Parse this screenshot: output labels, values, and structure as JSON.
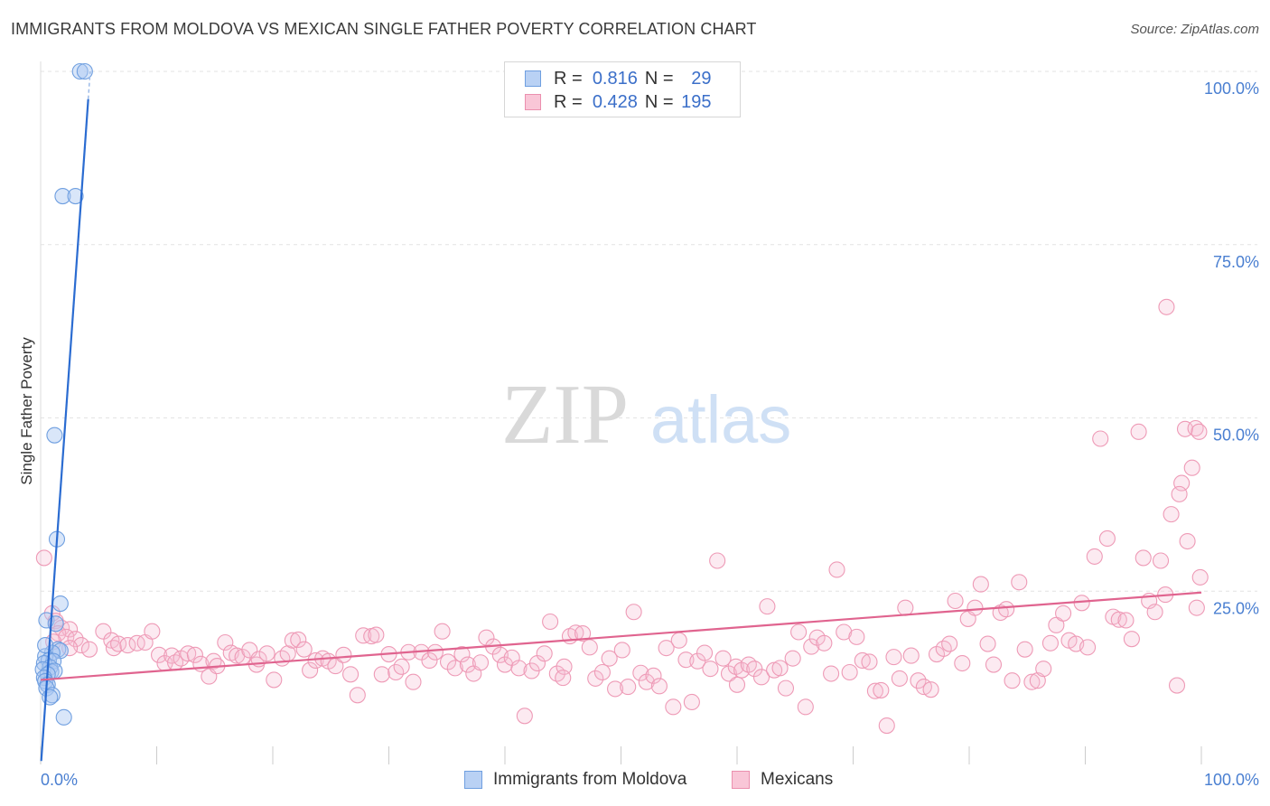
{
  "title": "IMMIGRANTS FROM MOLDOVA VS MEXICAN SINGLE FATHER POVERTY CORRELATION CHART",
  "source": "Source: ZipAtlas.com",
  "watermark": {
    "zip": "ZIP",
    "atlas": "atlas"
  },
  "legend": {
    "series": [
      {
        "name": "Immigrants from Moldova",
        "r_label": "R =",
        "r": "0.816",
        "n_label": "N =",
        "n": "29",
        "color": "#6f9fe0"
      },
      {
        "name": "Mexicans",
        "r_label": "R =",
        "r": "0.428",
        "n_label": "N =",
        "n": "195",
        "color": "#eb8fae"
      }
    ]
  },
  "chart_data": {
    "type": "scatter",
    "title": "IMMIGRANTS FROM MOLDOVA VS MEXICAN SINGLE FATHER POVERTY CORRELATION CHART",
    "xlabel": "",
    "ylabel": "Single Father Poverty",
    "xlim": [
      0,
      100
    ],
    "ylim": [
      0,
      100
    ],
    "x_tick_labels": [
      "0.0%",
      "100.0%"
    ],
    "y_ticks": [
      25,
      50,
      75,
      100
    ],
    "y_tick_labels": [
      "25.0%",
      "50.0%",
      "75.0%",
      "100.0%"
    ],
    "grid": true,
    "series": [
      {
        "name": "Immigrants from Moldova",
        "color": "#6f9fe0",
        "line_color": "#2b6cd1",
        "trend": {
          "x": [
            0.05,
            4.1
          ],
          "y": [
            0.5,
            96.0
          ]
        },
        "points": [
          [
            3.4,
            100
          ],
          [
            3.8,
            100
          ],
          [
            1.9,
            82
          ],
          [
            3.0,
            82
          ],
          [
            1.2,
            47.5
          ],
          [
            1.4,
            32.5
          ],
          [
            1.7,
            23.2
          ],
          [
            0.5,
            20.8
          ],
          [
            1.3,
            20.3
          ],
          [
            1.5,
            16.6
          ],
          [
            1.7,
            16.4
          ],
          [
            1.0,
            16.1
          ],
          [
            0.4,
            15.6
          ],
          [
            0.7,
            15.0
          ],
          [
            1.1,
            14.9
          ],
          [
            0.3,
            14.6
          ],
          [
            0.8,
            14.0
          ],
          [
            0.2,
            13.7
          ],
          [
            0.9,
            13.4
          ],
          [
            1.2,
            13.5
          ],
          [
            0.6,
            13.0
          ],
          [
            0.3,
            12.5
          ],
          [
            0.4,
            12.0
          ],
          [
            0.6,
            11.5
          ],
          [
            0.5,
            11.0
          ],
          [
            1.0,
            10.0
          ],
          [
            0.8,
            9.7
          ],
          [
            2.0,
            6.8
          ],
          [
            0.4,
            17.2
          ]
        ]
      },
      {
        "name": "Mexicans",
        "color": "#eb8fae",
        "line_color": "#e0648f",
        "trend": {
          "x": [
            0,
            100
          ],
          "y": [
            12.2,
            24.8
          ]
        },
        "points": [
          [
            0.3,
            29.8
          ],
          [
            1.0,
            21.8
          ],
          [
            1.3,
            20.7
          ],
          [
            1.8,
            19.7
          ],
          [
            2.5,
            19.5
          ],
          [
            1.5,
            18.9
          ],
          [
            2.2,
            18.4
          ],
          [
            3.0,
            18.1
          ],
          [
            1.1,
            17.7
          ],
          [
            3.5,
            17.2
          ],
          [
            2.5,
            16.8
          ],
          [
            4.2,
            16.6
          ],
          [
            5.4,
            19.2
          ],
          [
            6.1,
            17.9
          ],
          [
            6.3,
            16.8
          ],
          [
            6.7,
            17.4
          ],
          [
            7.5,
            17.2
          ],
          [
            8.3,
            17.5
          ],
          [
            9.0,
            17.6
          ],
          [
            9.6,
            19.2
          ],
          [
            10.2,
            15.8
          ],
          [
            10.7,
            14.6
          ],
          [
            11.3,
            15.7
          ],
          [
            11.6,
            14.7
          ],
          [
            12.1,
            15.3
          ],
          [
            12.7,
            16.0
          ],
          [
            13.3,
            15.8
          ],
          [
            13.8,
            14.5
          ],
          [
            14.5,
            12.7
          ],
          [
            14.9,
            14.9
          ],
          [
            15.2,
            14.2
          ],
          [
            15.9,
            17.6
          ],
          [
            16.4,
            16.1
          ],
          [
            16.9,
            15.7
          ],
          [
            17.4,
            15.5
          ],
          [
            18.0,
            16.5
          ],
          [
            18.6,
            14.4
          ],
          [
            18.8,
            15.2
          ],
          [
            19.5,
            16.0
          ],
          [
            20.1,
            12.2
          ],
          [
            20.8,
            15.3
          ],
          [
            21.3,
            16.0
          ],
          [
            21.7,
            17.9
          ],
          [
            22.2,
            18.0
          ],
          [
            22.7,
            16.6
          ],
          [
            23.2,
            13.6
          ],
          [
            23.7,
            15.0
          ],
          [
            24.3,
            15.3
          ],
          [
            24.8,
            14.9
          ],
          [
            25.4,
            14.2
          ],
          [
            26.1,
            15.8
          ],
          [
            26.7,
            13.0
          ],
          [
            27.3,
            10.0
          ],
          [
            27.8,
            18.6
          ],
          [
            28.5,
            18.5
          ],
          [
            28.9,
            18.7
          ],
          [
            29.4,
            13.0
          ],
          [
            30.0,
            15.9
          ],
          [
            30.6,
            13.3
          ],
          [
            31.1,
            14.1
          ],
          [
            31.7,
            16.2
          ],
          [
            32.1,
            11.9
          ],
          [
            32.8,
            16.2
          ],
          [
            33.5,
            15.0
          ],
          [
            34.0,
            16.2
          ],
          [
            34.6,
            19.2
          ],
          [
            35.1,
            14.8
          ],
          [
            35.7,
            13.9
          ],
          [
            36.3,
            15.9
          ],
          [
            36.8,
            14.4
          ],
          [
            37.3,
            13.1
          ],
          [
            37.9,
            14.7
          ],
          [
            38.4,
            18.3
          ],
          [
            39.0,
            17.0
          ],
          [
            39.6,
            15.8
          ],
          [
            40.0,
            14.4
          ],
          [
            40.6,
            15.4
          ],
          [
            41.2,
            13.9
          ],
          [
            41.7,
            7.0
          ],
          [
            42.3,
            13.5
          ],
          [
            42.8,
            14.6
          ],
          [
            43.4,
            16.0
          ],
          [
            43.9,
            20.6
          ],
          [
            44.5,
            13.1
          ],
          [
            45.1,
            14.1
          ],
          [
            45.6,
            18.5
          ],
          [
            46.1,
            19.0
          ],
          [
            46.7,
            18.9
          ],
          [
            47.3,
            16.9
          ],
          [
            47.8,
            12.4
          ],
          [
            48.4,
            13.3
          ],
          [
            49.0,
            15.3
          ],
          [
            49.5,
            10.9
          ],
          [
            50.1,
            16.5
          ],
          [
            50.6,
            11.2
          ],
          [
            51.1,
            22.0
          ],
          [
            51.7,
            13.2
          ],
          [
            52.2,
            11.9
          ],
          [
            52.8,
            12.8
          ],
          [
            53.3,
            11.3
          ],
          [
            53.9,
            16.8
          ],
          [
            54.5,
            8.3
          ],
          [
            55.0,
            17.9
          ],
          [
            55.6,
            15.1
          ],
          [
            56.1,
            9.0
          ],
          [
            56.6,
            14.9
          ],
          [
            57.2,
            16.1
          ],
          [
            57.7,
            13.8
          ],
          [
            58.3,
            29.4
          ],
          [
            58.8,
            15.3
          ],
          [
            59.3,
            13.1
          ],
          [
            59.9,
            14.1
          ],
          [
            60.4,
            13.6
          ],
          [
            61.0,
            14.4
          ],
          [
            61.5,
            13.8
          ],
          [
            62.1,
            12.6
          ],
          [
            62.6,
            22.8
          ],
          [
            63.2,
            13.6
          ],
          [
            63.7,
            13.9
          ],
          [
            64.2,
            11.0
          ],
          [
            64.8,
            15.3
          ],
          [
            65.3,
            19.1
          ],
          [
            65.9,
            8.3
          ],
          [
            66.4,
            17.0
          ],
          [
            66.9,
            18.3
          ],
          [
            67.5,
            17.5
          ],
          [
            68.1,
            13.1
          ],
          [
            68.6,
            28.1
          ],
          [
            69.2,
            19.1
          ],
          [
            69.7,
            13.3
          ],
          [
            70.3,
            18.4
          ],
          [
            70.8,
            15.0
          ],
          [
            71.4,
            14.8
          ],
          [
            71.9,
            10.6
          ],
          [
            72.4,
            10.7
          ],
          [
            72.9,
            5.6
          ],
          [
            73.5,
            15.5
          ],
          [
            74.0,
            12.4
          ],
          [
            74.5,
            22.6
          ],
          [
            75.0,
            15.7
          ],
          [
            75.6,
            12.1
          ],
          [
            76.1,
            11.2
          ],
          [
            76.7,
            10.8
          ],
          [
            77.2,
            15.9
          ],
          [
            77.8,
            16.7
          ],
          [
            78.3,
            17.4
          ],
          [
            78.8,
            23.6
          ],
          [
            79.4,
            14.6
          ],
          [
            79.9,
            21.0
          ],
          [
            80.5,
            22.6
          ],
          [
            81.0,
            26.0
          ],
          [
            81.6,
            17.4
          ],
          [
            82.1,
            14.4
          ],
          [
            82.7,
            21.9
          ],
          [
            83.2,
            22.4
          ],
          [
            83.7,
            12.1
          ],
          [
            84.3,
            26.3
          ],
          [
            84.8,
            16.6
          ],
          [
            85.4,
            11.9
          ],
          [
            85.9,
            12.1
          ],
          [
            86.4,
            13.8
          ],
          [
            87.0,
            17.5
          ],
          [
            87.5,
            20.1
          ],
          [
            88.1,
            21.8
          ],
          [
            88.6,
            17.9
          ],
          [
            89.2,
            17.4
          ],
          [
            89.7,
            23.3
          ],
          [
            90.2,
            16.9
          ],
          [
            90.8,
            30.0
          ],
          [
            91.3,
            47.0
          ],
          [
            91.9,
            32.6
          ],
          [
            92.4,
            21.3
          ],
          [
            92.9,
            20.9
          ],
          [
            93.5,
            20.8
          ],
          [
            94.0,
            18.1
          ],
          [
            94.6,
            48.0
          ],
          [
            95.0,
            29.8
          ],
          [
            95.5,
            23.6
          ],
          [
            96.0,
            22.0
          ],
          [
            96.5,
            29.4
          ],
          [
            96.9,
            24.5
          ],
          [
            97.4,
            36.1
          ],
          [
            97.9,
            11.4
          ],
          [
            98.3,
            40.6
          ],
          [
            98.8,
            32.2
          ],
          [
            99.2,
            42.8
          ],
          [
            99.6,
            22.6
          ],
          [
            99.9,
            27.0
          ],
          [
            98.6,
            48.4
          ],
          [
            99.5,
            48.5
          ],
          [
            97.0,
            66.0
          ],
          [
            99.8,
            48.0
          ],
          [
            98.1,
            39.0
          ],
          [
            60.0,
            11.5
          ],
          [
            45.0,
            12.5
          ]
        ]
      }
    ]
  }
}
